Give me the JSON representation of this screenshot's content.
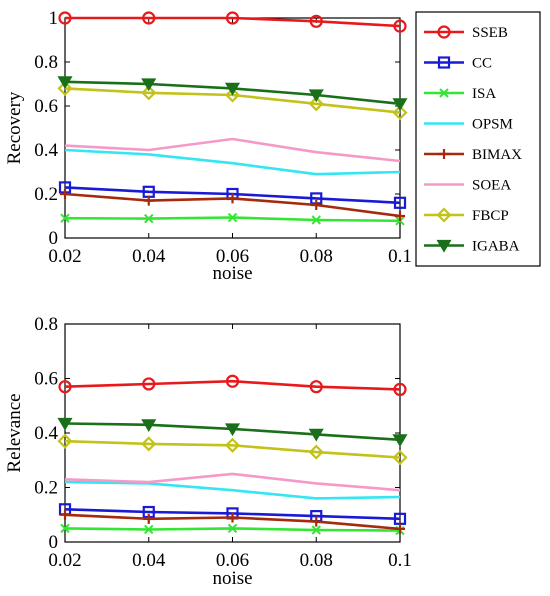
{
  "chart_data": [
    {
      "type": "line",
      "xlabel": "noise",
      "ylabel": "Recovery",
      "x": [
        0.02,
        0.04,
        0.06,
        0.08,
        0.1
      ],
      "x_tick_labels": [
        "0.02",
        "0.04",
        "0.06",
        "0.08",
        "0.1"
      ],
      "ylim": [
        0,
        1
      ],
      "y_ticks": [
        0,
        0.2,
        0.4,
        0.6,
        0.8,
        1
      ],
      "y_tick_labels": [
        "0",
        "0.2",
        "0.4",
        "0.6",
        "0.8",
        "1"
      ],
      "grid": false,
      "legend_position": "right",
      "series": [
        {
          "name": "SSEB",
          "color": "#e8191c",
          "marker": "circle",
          "values": [
            1.0,
            1.0,
            1.0,
            0.985,
            0.963
          ]
        },
        {
          "name": "CC",
          "color": "#1a1ad6",
          "marker": "square",
          "values": [
            0.23,
            0.21,
            0.2,
            0.18,
            0.16
          ]
        },
        {
          "name": "ISA",
          "color": "#33e633",
          "marker": "x",
          "values": [
            0.09,
            0.088,
            0.093,
            0.082,
            0.078
          ]
        },
        {
          "name": "OPSM",
          "color": "#33e6f2",
          "marker": "none",
          "values": [
            0.4,
            0.38,
            0.34,
            0.29,
            0.3
          ]
        },
        {
          "name": "BIMAX",
          "color": "#a52a0c",
          "marker": "plus",
          "values": [
            0.2,
            0.17,
            0.18,
            0.15,
            0.1
          ]
        },
        {
          "name": "SOEA",
          "color": "#f59ac8",
          "marker": "none",
          "values": [
            0.42,
            0.4,
            0.45,
            0.39,
            0.35
          ]
        },
        {
          "name": "FBCP",
          "color": "#c2c21a",
          "marker": "diamond",
          "values": [
            0.68,
            0.66,
            0.65,
            0.61,
            0.57
          ]
        },
        {
          "name": "IGABA",
          "color": "#1a701a",
          "marker": "triangle-down",
          "values": [
            0.71,
            0.7,
            0.68,
            0.65,
            0.61
          ]
        }
      ]
    },
    {
      "type": "line",
      "xlabel": "noise",
      "ylabel": "Relevance",
      "x": [
        0.02,
        0.04,
        0.06,
        0.08,
        0.1
      ],
      "x_tick_labels": [
        "0.02",
        "0.04",
        "0.06",
        "0.08",
        "0.1"
      ],
      "ylim": [
        0,
        0.8
      ],
      "y_ticks": [
        0,
        0.2,
        0.4,
        0.6,
        0.8
      ],
      "y_tick_labels": [
        "0",
        "0.2",
        "0.4",
        "0.6",
        "0.8"
      ],
      "grid": false,
      "series": [
        {
          "name": "SSEB",
          "color": "#e8191c",
          "marker": "circle",
          "values": [
            0.57,
            0.58,
            0.59,
            0.57,
            0.56
          ]
        },
        {
          "name": "CC",
          "color": "#1a1ad6",
          "marker": "square",
          "values": [
            0.12,
            0.11,
            0.105,
            0.095,
            0.085
          ]
        },
        {
          "name": "ISA",
          "color": "#33e633",
          "marker": "x",
          "values": [
            0.05,
            0.046,
            0.05,
            0.044,
            0.042
          ]
        },
        {
          "name": "OPSM",
          "color": "#33e6f2",
          "marker": "none",
          "values": [
            0.22,
            0.215,
            0.19,
            0.16,
            0.165
          ]
        },
        {
          "name": "BIMAX",
          "color": "#a52a0c",
          "marker": "plus",
          "values": [
            0.1,
            0.085,
            0.09,
            0.075,
            0.048
          ]
        },
        {
          "name": "SOEA",
          "color": "#f59ac8",
          "marker": "none",
          "values": [
            0.23,
            0.22,
            0.25,
            0.215,
            0.19
          ]
        },
        {
          "name": "FBCP",
          "color": "#c2c21a",
          "marker": "diamond",
          "values": [
            0.37,
            0.36,
            0.355,
            0.33,
            0.31
          ]
        },
        {
          "name": "IGABA",
          "color": "#1a701a",
          "marker": "triangle-down",
          "values": [
            0.435,
            0.43,
            0.415,
            0.395,
            0.375
          ]
        }
      ]
    }
  ]
}
